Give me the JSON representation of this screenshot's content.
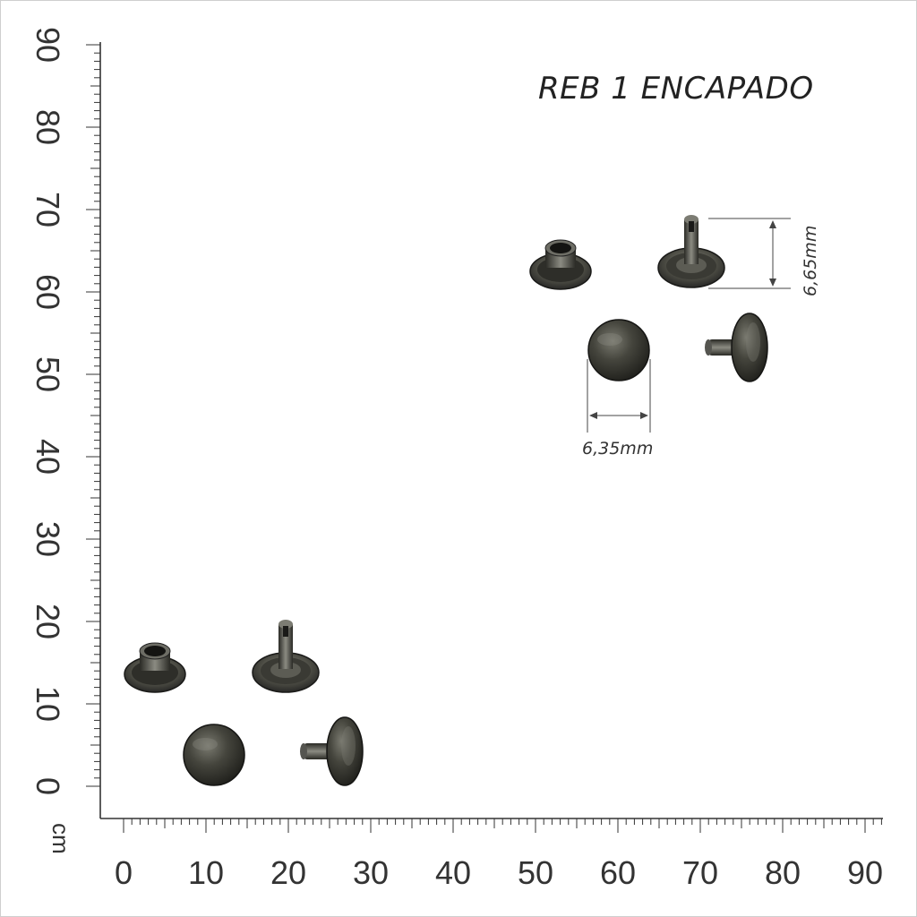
{
  "title": "REB 1 ENCAPADO",
  "x_axis": {
    "labels": [
      "0",
      "10",
      "20",
      "30",
      "40",
      "50",
      "60",
      "70",
      "80",
      "90"
    ]
  },
  "y_axis": {
    "labels": [
      "0",
      "10",
      "20",
      "30",
      "40",
      "50",
      "60",
      "70",
      "80",
      "90"
    ],
    "unit": "cm"
  },
  "dimensions": {
    "height": "6,65mm",
    "diameter": "6,35mm"
  },
  "colors": {
    "metal": "#3a3a33",
    "metal_highlight": "#8a8a80",
    "axis": "#333333"
  }
}
